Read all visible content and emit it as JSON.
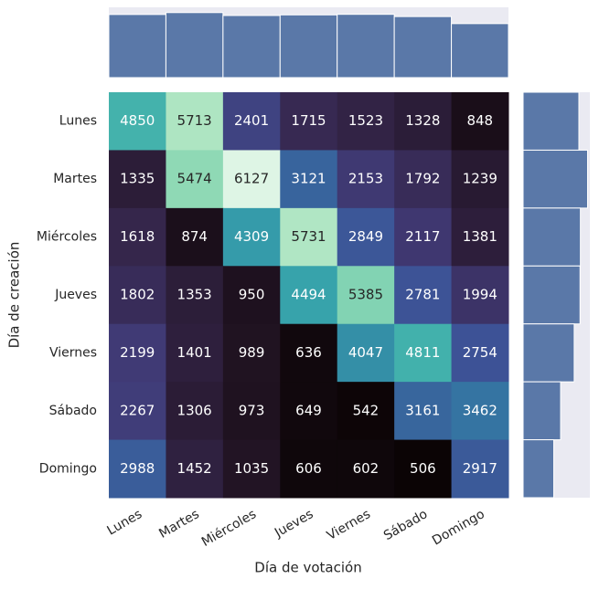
{
  "chart_data": [
    {
      "type": "heatmap",
      "x_label": "Día de votación",
      "y_label": "Día de creación",
      "x_categories": [
        "Lunes",
        "Martes",
        "Miércoles",
        "Jueves",
        "Viernes",
        "Sábado",
        "Domingo"
      ],
      "y_categories": [
        "Lunes",
        "Martes",
        "Miércoles",
        "Jueves",
        "Viernes",
        "Sábado",
        "Domingo"
      ],
      "colormap": "mako",
      "values": [
        [
          4850,
          5713,
          2401,
          1715,
          1523,
          1328,
          848
        ],
        [
          1335,
          5474,
          6127,
          3121,
          2153,
          1792,
          1239
        ],
        [
          1618,
          874,
          4309,
          5731,
          2849,
          2117,
          1381
        ],
        [
          1802,
          1353,
          950,
          4494,
          5385,
          2781,
          1994
        ],
        [
          2199,
          1401,
          989,
          636,
          4047,
          4811,
          2754
        ],
        [
          2267,
          1306,
          973,
          649,
          542,
          3161,
          3462
        ],
        [
          2988,
          1452,
          1035,
          606,
          602,
          506,
          2917
        ]
      ]
    },
    {
      "type": "bar",
      "orientation": "vertical",
      "color": "#5a78a8",
      "values": [
        17059,
        17573,
        16784,
        16952,
        17101,
        16496,
        14595
      ],
      "ylim": [
        0,
        19000
      ]
    },
    {
      "type": "bar",
      "orientation": "horizontal",
      "color": "#5a78a8",
      "values": [
        18378,
        21241,
        18879,
        18759,
        16837,
        12360,
        10106
      ],
      "xlim": [
        0,
        22000
      ]
    }
  ]
}
